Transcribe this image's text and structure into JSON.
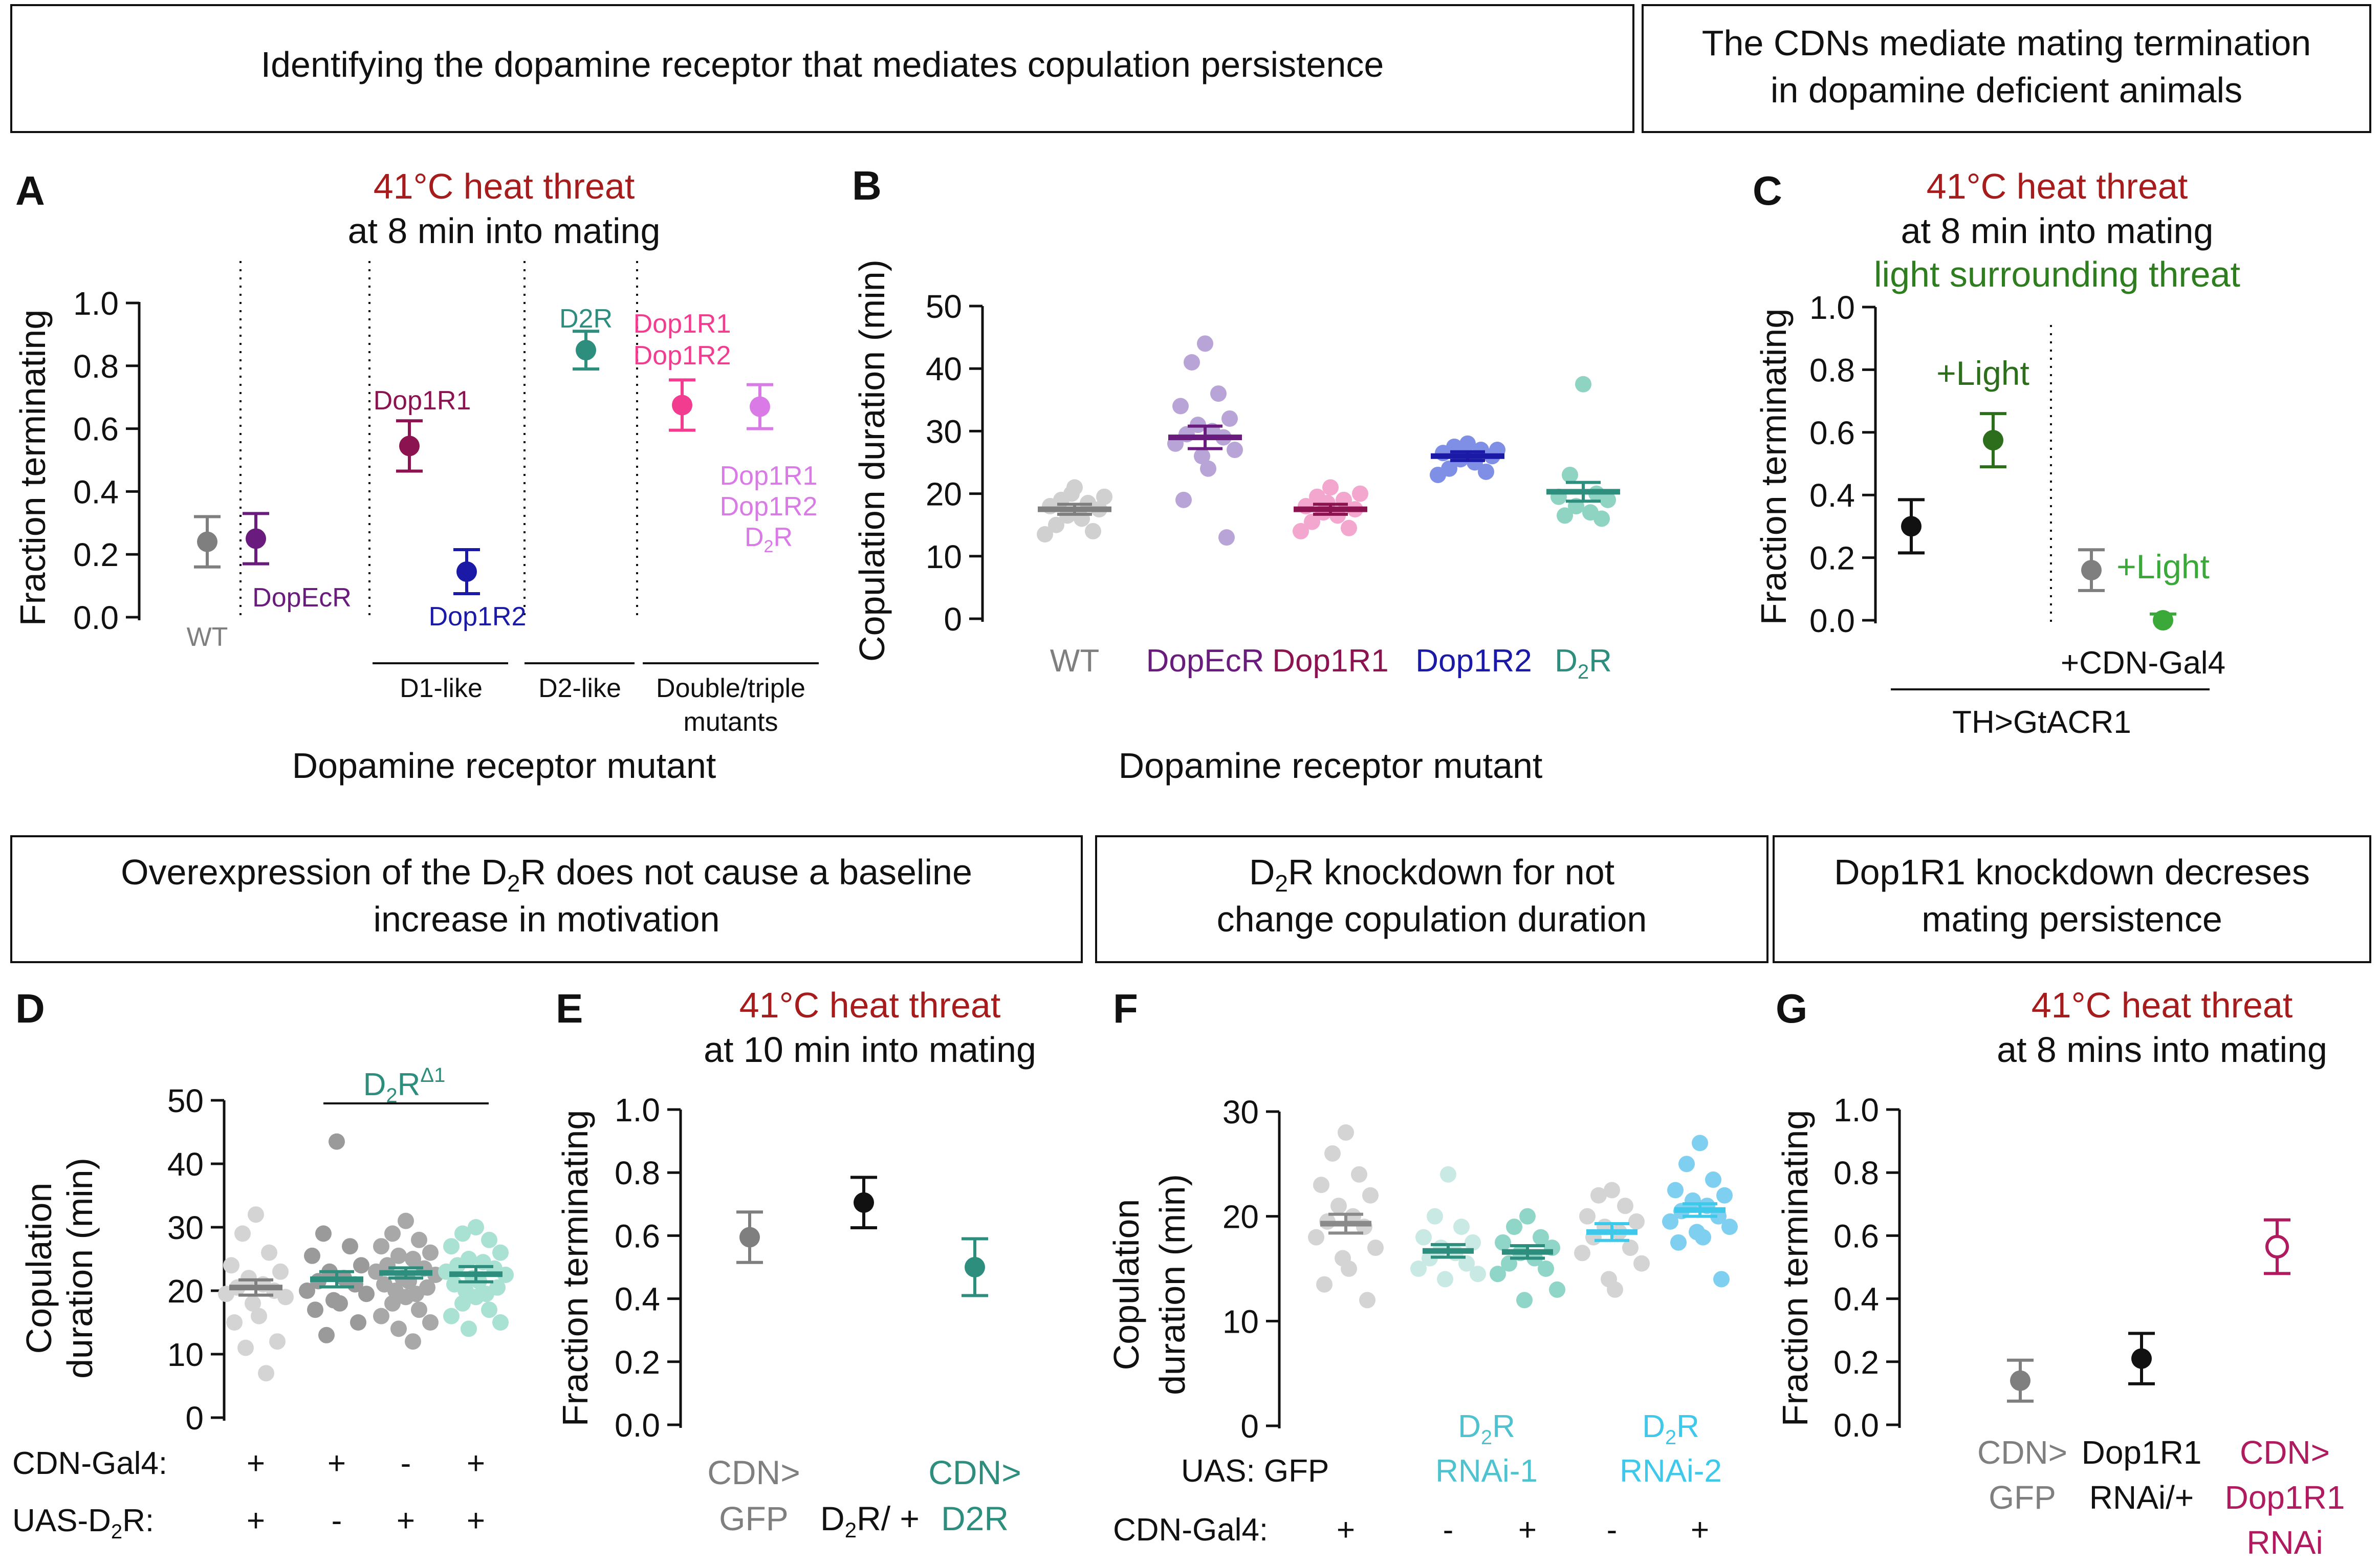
{
  "colors": {
    "black": "#111111",
    "gray": "#7f7f7f",
    "light_gray": "#bdbdbd",
    "red_title": "#a61c1c",
    "green_title": "#2e7d1e",
    "dopecr": "#6a1b7e",
    "dop1r1": "#8b1450",
    "dop1r2": "#1a1aa6",
    "d2r": "#2e8e7d",
    "d2r_light": "#8fd3c3",
    "pink": "#f23c8f",
    "lilac": "#d97ae6",
    "dark_green": "#2c6e1c",
    "light_green": "#3aa93a",
    "cyan": "#3ec8ea",
    "cyan_light": "#9fd8ee",
    "teal_label": "#4fc2cf",
    "magenta": "#b01a5f"
  },
  "headers": {
    "h1": "Identifying the dopamine receptor that mediates copulation persistence",
    "h2_line1": "The CDNs mediate mating termination",
    "h2_line2": "in dopamine deficient animals",
    "h3_line1_pre": "Overexpression of the D",
    "h3_line1_sub": "2",
    "h3_line1_post": "R does not cause a baseline",
    "h3_line2": "increase in motivation",
    "h4_line1_pre": "D",
    "h4_line1_sub": "2",
    "h4_line1_post": "R knockdown for not",
    "h4_line2": "change copulation duration",
    "h5_line1": "Dop1R1 knockdown decreses",
    "h5_line2": "mating persistence"
  },
  "panel_letters": [
    "A",
    "B",
    "C",
    "D",
    "E",
    "F",
    "G"
  ],
  "chart_data": [
    {
      "panel": "A",
      "type": "scatter",
      "title_line1": "41°C heat threat",
      "title_line2": "at 8 min into mating",
      "ylabel": "Fraction terminating",
      "xlabel": "Dopamine receptor mutant",
      "ylim": [
        0,
        1
      ],
      "yticks": [
        "0.0",
        "0.2",
        "0.4",
        "0.6",
        "0.8",
        "1.0"
      ],
      "series": [
        {
          "label": "WT",
          "mean": 0.24,
          "err": 0.08
        },
        {
          "label": "DopEcR",
          "mean": 0.25,
          "err": 0.08
        },
        {
          "label": "Dop1R1",
          "mean": 0.545,
          "err": 0.08
        },
        {
          "label": "Dop1R2",
          "mean": 0.145,
          "err": 0.07
        },
        {
          "label": "D2R",
          "mean": 0.85,
          "err": 0.06
        },
        {
          "label_line1": "Dop1R1",
          "label_line2": "Dop1R2",
          "mean": 0.675,
          "err": 0.08
        },
        {
          "label_line1": "Dop1R1",
          "label_line2": "Dop1R2",
          "label_line3_pre": "D",
          "label_line3_sub": "2",
          "label_line3_post": "R",
          "mean": 0.67,
          "err": 0.07
        }
      ],
      "groups": [
        "D1-like",
        "D2-like",
        "Double/triple",
        "mutants"
      ]
    },
    {
      "panel": "B",
      "type": "scatter",
      "ylabel": "Copulation duration (min)",
      "xlabel": "Dopamine receptor mutant",
      "ylim": [
        0,
        50
      ],
      "yticks": [
        "0",
        "10",
        "20",
        "30",
        "40",
        "50"
      ],
      "categories": [
        "WT",
        "DopEcR",
        "Dop1R1",
        "Dop1R2",
        "D2R"
      ],
      "d2r_label": {
        "pre": "D",
        "sub": "2",
        "post": "R"
      },
      "means": [
        17.5,
        29,
        17.5,
        26,
        20.3
      ],
      "sems": [
        0.8,
        1.8,
        0.8,
        0.7,
        1.5
      ],
      "points": [
        [
          21,
          19,
          18.5,
          18,
          17.5,
          16.5,
          16,
          15,
          14,
          13.5,
          19.5,
          20
        ],
        [
          44,
          41,
          36,
          34,
          32,
          31,
          30,
          29.5,
          29,
          28,
          27,
          26,
          24,
          19,
          13
        ],
        [
          21,
          19.5,
          19,
          18,
          17.5,
          17,
          16.5,
          15.5,
          14.5,
          14,
          20,
          18.5
        ],
        [
          28,
          27.5,
          27,
          26.5,
          26,
          25.5,
          25,
          24,
          23.5,
          23,
          27,
          26
        ],
        [
          37.5,
          23,
          20,
          19.5,
          19,
          18,
          17,
          16.5,
          16
        ]
      ]
    },
    {
      "panel": "C",
      "type": "scatter",
      "title_line1": "41°C heat threat",
      "title_line2": "at 8 min into mating",
      "title_line3": "light surrounding threat",
      "ylabel": "Fraction terminating",
      "ylim": [
        0,
        1
      ],
      "yticks": [
        "0.0",
        "0.2",
        "0.4",
        "0.6",
        "0.8",
        "1.0"
      ],
      "series": [
        {
          "label": "",
          "mean": 0.3,
          "err": 0.085
        },
        {
          "label": "+Light",
          "mean": 0.575,
          "err": 0.085
        },
        {
          "label": "",
          "mean": 0.16,
          "err": 0.065
        },
        {
          "label": "+Light",
          "mean": 0.0,
          "err": 0.02
        }
      ],
      "group_label": "+CDN-Gal4",
      "bottom_label": "TH>GtACR1"
    },
    {
      "panel": "D",
      "type": "scatter",
      "ylabel_line1": "Copulation",
      "ylabel_line2": "duration (min)",
      "ylim": [
        0,
        50
      ],
      "yticks": [
        "0",
        "10",
        "20",
        "30",
        "40",
        "50"
      ],
      "bracket": {
        "pre": "D",
        "sub": "2",
        "post": "R",
        "sup": "Δ1"
      },
      "means": [
        20.5,
        21.8,
        22.8,
        22.6
      ],
      "sems": [
        1.2,
        1.2,
        0.8,
        1.2
      ],
      "points": [
        [
          32,
          29,
          26,
          24,
          23,
          22,
          21,
          20.5,
          20,
          19.5,
          19,
          18,
          16,
          15,
          12,
          11,
          7
        ],
        [
          43.5,
          29,
          27,
          25.5,
          24,
          23,
          22,
          21.5,
          21,
          20,
          19.5,
          18.5,
          18,
          17,
          15,
          13
        ],
        [
          31,
          29,
          28,
          27,
          26,
          25.5,
          25,
          24,
          23.5,
          23,
          22.5,
          22,
          21.5,
          21,
          20.5,
          20,
          19.5,
          19,
          18,
          17,
          16,
          15,
          14,
          12
        ],
        [
          30,
          29,
          28,
          27,
          26,
          25,
          24.5,
          24,
          23.5,
          23,
          22.5,
          22,
          21.5,
          21,
          20.5,
          20,
          19.5,
          19,
          18,
          17,
          16,
          15,
          14
        ]
      ],
      "row1_label": "CDN-Gal4:",
      "row1": [
        "+",
        "+",
        "-",
        "+"
      ],
      "row2_label": {
        "pre": "UAS-D",
        "sub": "2",
        "post": "R:"
      },
      "row2": [
        "+",
        "-",
        "+",
        "+"
      ]
    },
    {
      "panel": "E",
      "type": "scatter",
      "title_line1": "41°C heat threat",
      "title_line2": "at 10 min into mating",
      "ylabel": "Fraction terminating",
      "ylim": [
        0,
        1
      ],
      "yticks": [
        "0.0",
        "0.2",
        "0.4",
        "0.6",
        "0.8",
        "1.0"
      ],
      "series": [
        {
          "label_line1": "CDN>",
          "label_line2": "GFP",
          "mean": 0.595,
          "err": 0.08
        },
        {
          "label_pre": "D",
          "label_sub": "2",
          "label_post": "R/ +",
          "mean": 0.705,
          "err": 0.08
        },
        {
          "label_line1": "CDN>",
          "label_line2": "D2R",
          "mean": 0.5,
          "err": 0.09
        }
      ]
    },
    {
      "panel": "F",
      "type": "scatter",
      "ylabel_line1": "Copulation",
      "ylabel_line2": "duration (min)",
      "ylim": [
        0,
        30
      ],
      "yticks": [
        "0",
        "10",
        "20",
        "30"
      ],
      "means": [
        19.3,
        16.7,
        16.6,
        18.5,
        20.6
      ],
      "sems": [
        0.9,
        0.6,
        0.6,
        0.8,
        0.6
      ],
      "points": [
        [
          28,
          26,
          24,
          23,
          22,
          21,
          20,
          19.5,
          19,
          18,
          17,
          16,
          15,
          13.5,
          12
        ],
        [
          24,
          20,
          19,
          18,
          17.5,
          17,
          16.5,
          16,
          15.5,
          15,
          14.5,
          14
        ],
        [
          20,
          19,
          18,
          17.5,
          17,
          16.5,
          16,
          15.5,
          15,
          14.5,
          13,
          12
        ],
        [
          22.5,
          22,
          21,
          20,
          19.5,
          19,
          18.5,
          18,
          17,
          16.5,
          15.5,
          14,
          13
        ],
        [
          27,
          25,
          23.5,
          22.5,
          22,
          21.5,
          21,
          20.5,
          20,
          19.5,
          19,
          18.5,
          18,
          17.5,
          14
        ]
      ],
      "group1": {
        "pre": "D",
        "sub": "2",
        "post": "R",
        "line2": "RNAi-1"
      },
      "group2": {
        "pre": "D",
        "sub": "2",
        "post": "R",
        "line2": "RNAi-2"
      },
      "row1_label": "UAS: GFP",
      "row2_label": "CDN-Gal4:",
      "row2": [
        "+",
        "-",
        "+",
        "-",
        "+"
      ]
    },
    {
      "panel": "G",
      "type": "scatter",
      "title_line1": "41°C heat threat",
      "title_line2": "at 8 mins into mating",
      "ylabel": "Fraction terminating",
      "ylim": [
        0,
        1
      ],
      "yticks": [
        "0.0",
        "0.2",
        "0.4",
        "0.6",
        "0.8",
        "1.0"
      ],
      "series": [
        {
          "label_line1": "CDN>",
          "label_line2": "GFP",
          "mean": 0.14,
          "err": 0.065
        },
        {
          "label_line1": "Dop1R1",
          "label_line2": "RNAi/+",
          "mean": 0.21,
          "err": 0.08
        },
        {
          "label_line1": "CDN>",
          "label_line2": "Dop1R1",
          "label_line3": "RNAi",
          "mean": 0.565,
          "err": 0.085
        }
      ]
    }
  ]
}
